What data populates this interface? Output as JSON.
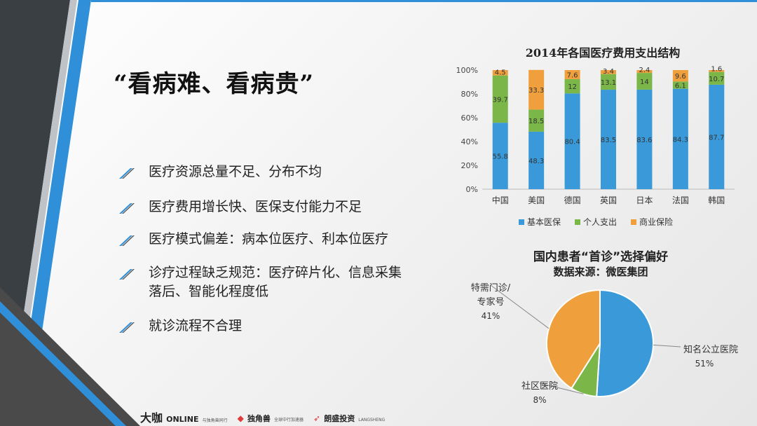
{
  "slide": {
    "title": "“看病难、看病贵”",
    "bullets": [
      "医疗资源总量不足、分布不均",
      "医疗费用增长快、医保支付能力不足",
      "医疗模式偏差：病本位医疗、利本位医疗",
      "诊疗过程缺乏规范：医疗碎片化、信息采集落后、智能化程度低",
      "就诊流程不合理"
    ],
    "logos": {
      "daka": "大咖",
      "online": "ONLINE",
      "online_sub": "与独角兽同行",
      "dujiaoshou": "独角兽",
      "dujiaoshou_sub": "全球中行加速器",
      "langsheng": "朗盛投资",
      "langsheng_en": "LANGSHENG"
    },
    "colors": {
      "blue": "#3a9ad9",
      "green": "#7ab648",
      "orange": "#ef9f3b"
    }
  },
  "chart_data": [
    {
      "type": "bar",
      "title": "2014年各国医疗费用支出结构",
      "categories": [
        "中国",
        "美国",
        "德国",
        "英国",
        "日本",
        "法国",
        "韩国"
      ],
      "ylim": [
        0,
        100
      ],
      "y_ticks": [
        "0%",
        "20%",
        "40%",
        "60%",
        "80%",
        "100%"
      ],
      "stacked": true,
      "series": [
        {
          "name": "基本医保",
          "values": [
            55.8,
            48.3,
            80.4,
            83.5,
            83.6,
            84.3,
            87.7
          ],
          "color": "#3a9ad9"
        },
        {
          "name": "个人支出",
          "values": [
            39.7,
            18.5,
            12,
            13.1,
            14,
            6.1,
            10.7
          ],
          "color": "#7ab648"
        },
        {
          "name": "商业保险",
          "values": [
            4.5,
            33.3,
            7.6,
            3.4,
            2.4,
            9.6,
            1.6
          ],
          "color": "#ef9f3b"
        }
      ],
      "legend": "bottom"
    },
    {
      "type": "pie",
      "title": "国内患者“首诊”选择偏好",
      "subtitle": "数据来源：微医集团",
      "slices": [
        {
          "label": "知名公立医院",
          "value": 51,
          "pct": "51%",
          "color": "#3a9ad9"
        },
        {
          "label": "社区医院",
          "value": 8,
          "pct": "8%",
          "color": "#7ab648"
        },
        {
          "label": "特需门诊/专家号",
          "value": 41,
          "pct": "41%",
          "color": "#ef9f3b"
        }
      ]
    }
  ]
}
